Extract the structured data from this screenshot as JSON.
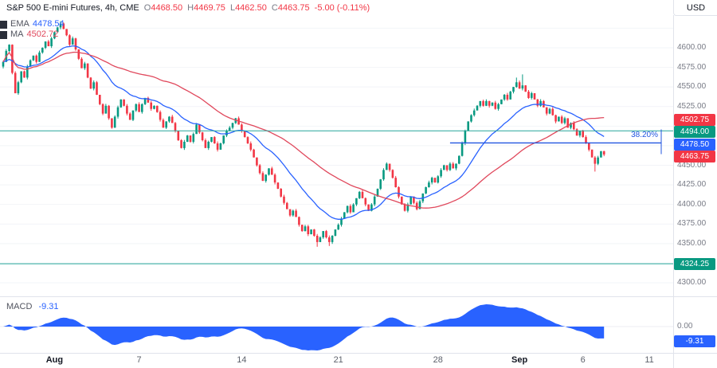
{
  "header": {
    "title": "S&P 500 E-mini Futures, 4h, CME",
    "o_label": "O",
    "o": "4468.50",
    "h_label": "H",
    "h": "4469.75",
    "l_label": "L",
    "l": "4462.50",
    "c_label": "C",
    "c": "4463.75",
    "change": "-5.00 (-0.11%)"
  },
  "legend": {
    "ema_label": "EMA",
    "ema_value": "4478.54",
    "ma_label": "MA",
    "ma_value": "4502.72"
  },
  "currency_button": {
    "label": "USD"
  },
  "macd_pane": {
    "label": "MACD",
    "value": "-9.31",
    "zero": "0.00",
    "badge": "-9.31"
  },
  "fib_label": "38.20%",
  "colors": {
    "up": "#089981",
    "down": "#f23645",
    "ema": "#2962ff",
    "ma": "#e0485c",
    "line_teal": "#26a69a",
    "fib": "#2155e0",
    "macd": "#2962ff",
    "axis_text": "#787b86",
    "text": "#131722"
  },
  "chart_data": {
    "type": "candlestick",
    "title": "S&P 500 E-mini Futures, 4h, CME",
    "symbol": "S&P 500 E-mini Futures",
    "interval": "4h",
    "exchange": "CME",
    "currency": "USD",
    "last_ohlc": {
      "open": 4468.5,
      "high": 4469.75,
      "low": 4462.5,
      "close": 4463.75,
      "change": -5.0,
      "change_pct": -0.11
    },
    "ylim": [
      4283,
      4641
    ],
    "closes": [
      4582,
      4596,
      4604,
      4568,
      4542,
      4556,
      4570,
      4562,
      4576,
      4584,
      4590,
      4582,
      4594,
      4600,
      4608,
      4602,
      4612,
      4620,
      4626,
      4631,
      4624,
      4616,
      4604,
      4612,
      4598,
      4586,
      4574,
      4580,
      4562,
      4548,
      4556,
      4540,
      4528,
      4516,
      4526,
      4510,
      4498,
      4512,
      4524,
      4534,
      4526,
      4516,
      4508,
      4520,
      4528,
      4518,
      4528,
      4536,
      4530,
      4522,
      4526,
      4518,
      4508,
      4498,
      4506,
      4512,
      4504,
      4494,
      4482,
      4472,
      4480,
      4488,
      4480,
      4490,
      4502,
      4492,
      4482,
      4472,
      4480,
      4486,
      4478,
      4470,
      4478,
      4488,
      4494,
      4498,
      4504,
      4510,
      4502,
      4494,
      4486,
      4478,
      4470,
      4460,
      4450,
      4440,
      4430,
      4438,
      4446,
      4438,
      4428,
      4420,
      4410,
      4402,
      4394,
      4386,
      4392,
      4384,
      4374,
      4366,
      4372,
      4362,
      4368,
      4360,
      4352,
      4358,
      4366,
      4358,
      4352,
      4360,
      4368,
      4374,
      4382,
      4390,
      4398,
      4390,
      4400,
      4408,
      4416,
      4408,
      4400,
      4392,
      4400,
      4410,
      4420,
      4432,
      4444,
      4452,
      4444,
      4434,
      4422,
      4410,
      4400,
      4392,
      4400,
      4410,
      4402,
      4394,
      4404,
      4414,
      4422,
      4428,
      4434,
      4428,
      4436,
      4444,
      4450,
      4444,
      4452,
      4446,
      4452,
      4462,
      4478,
      4494,
      4506,
      4514,
      4520,
      4526,
      4532,
      4526,
      4532,
      4526,
      4530,
      4522,
      4528,
      4534,
      4540,
      4534,
      4544,
      4550,
      4556,
      4548,
      4552,
      4544,
      4536,
      4542,
      4534,
      4526,
      4532,
      4524,
      4516,
      4522,
      4514,
      4506,
      4512,
      4504,
      4510,
      4498,
      4504,
      4496,
      4488,
      4494,
      4486,
      4478,
      4470,
      4460,
      4452,
      4460,
      4468,
      4463.75
    ],
    "extremes": {
      "swing_high": 4634,
      "swing_low": 4346,
      "sep_high": 4566,
      "last_low_wick": 4442
    },
    "price_axis": {
      "ticks": [
        4600,
        4575,
        4550,
        4525,
        4450,
        4425,
        4400,
        4375,
        4350,
        4300
      ]
    },
    "overlays": {
      "ema": {
        "label": "EMA",
        "value": 4478.54,
        "color": "#2962ff",
        "period": 21
      },
      "ma": {
        "label": "MA",
        "value": 4502.72,
        "color": "#e0485c",
        "period": 50
      }
    },
    "horizontal_lines": [
      {
        "price": 4494.0,
        "color": "#26a69a"
      },
      {
        "price": 4324.25,
        "color": "#26a69a"
      }
    ],
    "fib": {
      "label": "38.20%",
      "price": 4478.5,
      "color": "#2155e0",
      "start_bar": 148
    },
    "macd": {
      "label": "MACD",
      "value": -9.31,
      "fast": 12,
      "slow": 26,
      "color": "#2962ff",
      "zero": 0.0
    },
    "badges": [
      {
        "text": "4502.75",
        "price": 4502.75,
        "color": "#f23645"
      },
      {
        "text": "4494.00",
        "price": 4494.0,
        "color": "#089981"
      },
      {
        "text": "4478.50",
        "price": 4478.5,
        "color": "#2962ff"
      },
      {
        "text": "4463.75",
        "price": 4463.75,
        "color": "#f23645"
      },
      {
        "text": "4324.25",
        "price": 4324.25,
        "color": "#089981"
      }
    ],
    "time_axis": [
      {
        "label": "Aug",
        "bar": 17,
        "major": true
      },
      {
        "label": "7",
        "bar": 45,
        "major": false
      },
      {
        "label": "14",
        "bar": 79,
        "major": false
      },
      {
        "label": "21",
        "bar": 111,
        "major": false
      },
      {
        "label": "28",
        "bar": 144,
        "major": false
      },
      {
        "label": "Sep",
        "bar": 171,
        "major": true
      },
      {
        "label": "6",
        "bar": 192,
        "major": false
      },
      {
        "label": "11",
        "bar": 214,
        "major": false
      }
    ]
  }
}
